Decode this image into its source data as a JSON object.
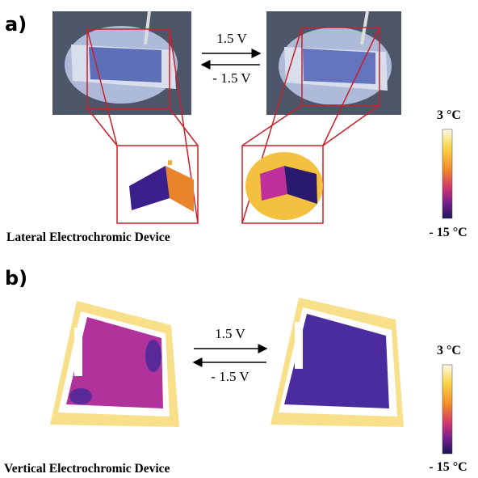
{
  "panels": [
    {
      "label": "a)",
      "forward": "1.5 V",
      "reverse": "- 1.5 V",
      "scale_max": "3 °C",
      "scale_min": "- 15 °C",
      "caption": "Lateral Electrochromic Device"
    },
    {
      "label": "b)",
      "forward": "1.5 V",
      "reverse": "- 1.5 V",
      "scale_max": "3 °C",
      "scale_min": "- 15 °C",
      "caption": "Vertical Electrochromic Device"
    }
  ]
}
